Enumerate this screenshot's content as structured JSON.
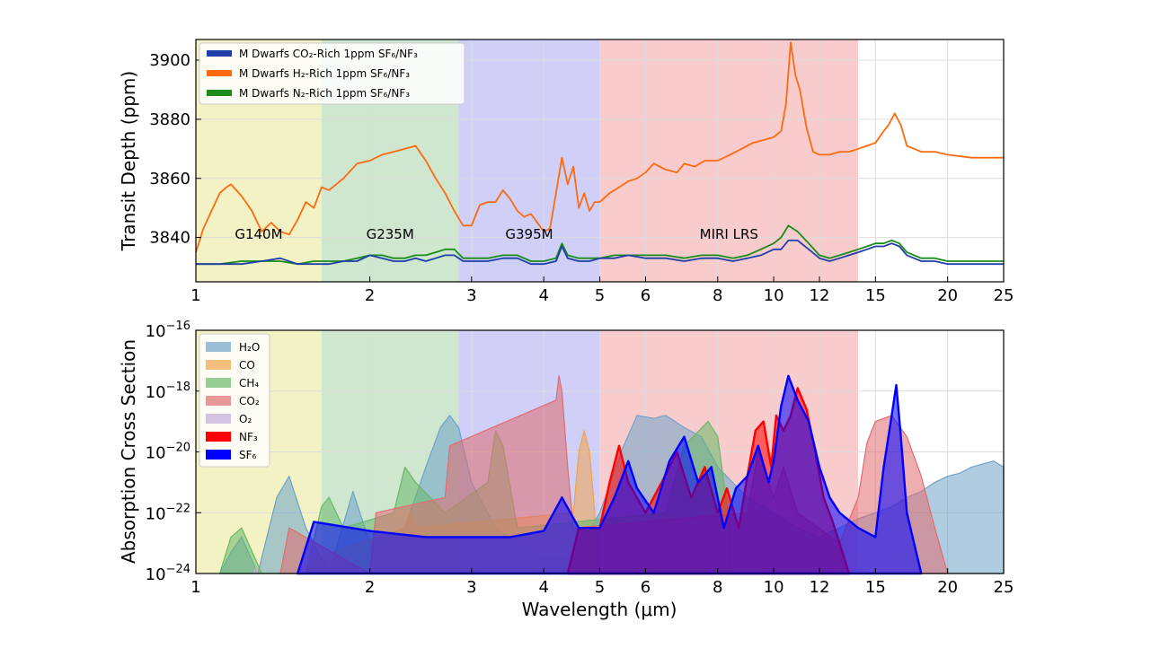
{
  "colors": {
    "band_g140m": "#f2f2c4",
    "band_g235m": "#cfe6cf",
    "band_g395m": "#cfcff7",
    "band_miri": "#f8cccc",
    "co2_rich": "#1f3fa8",
    "h2_rich": "#ff6a10",
    "n2_rich": "#1a8c1a",
    "h2o": "#6ea3c8",
    "co": "#f2a24a",
    "ch4": "#6ab86a",
    "co2": "#e06c70",
    "o2": "#c3a9dc",
    "nf3": "#ff0000",
    "sf6": "#0000ff"
  },
  "chart_data": [
    {
      "type": "line",
      "xlabel": "",
      "ylabel": "Transit Depth (ppm)",
      "xscale": "log",
      "xlim": [
        1,
        25
      ],
      "ylim": [
        3825,
        3907
      ],
      "x_ticks": [
        1,
        2,
        3,
        4,
        5,
        6,
        8,
        10,
        12,
        15,
        20,
        25
      ],
      "y_ticks": [
        3840,
        3860,
        3880,
        3900
      ],
      "grid": true,
      "legend_position": "top-left",
      "bands": [
        {
          "label": "G140M",
          "range": [
            1.0,
            1.65
          ]
        },
        {
          "label": "G235M",
          "range": [
            1.65,
            2.85
          ]
        },
        {
          "label": "G395M",
          "range": [
            2.85,
            5.0
          ]
        },
        {
          "label": "MIRI LRS",
          "range": [
            5.0,
            14.0
          ]
        }
      ],
      "series": [
        {
          "name": "M Dwarfs CO₂-Rich 1ppm SF₆/NF₃",
          "color_key": "co2_rich",
          "x": [
            1.0,
            1.1,
            1.2,
            1.3,
            1.4,
            1.5,
            1.6,
            1.7,
            1.8,
            1.9,
            2.0,
            2.1,
            2.2,
            2.3,
            2.4,
            2.5,
            2.6,
            2.7,
            2.8,
            2.9,
            3.0,
            3.2,
            3.4,
            3.6,
            3.8,
            4.0,
            4.2,
            4.3,
            4.4,
            4.6,
            4.8,
            5.0,
            5.3,
            5.6,
            6.0,
            6.5,
            7.0,
            7.5,
            8.0,
            8.5,
            9.0,
            9.5,
            10.0,
            10.3,
            10.6,
            11.0,
            11.5,
            12.0,
            12.5,
            13.0,
            13.5,
            14.0,
            14.5,
            15.0,
            15.5,
            16.0,
            16.5,
            17.0,
            18.0,
            19.0,
            20.0,
            22.0,
            25.0
          ],
          "y": [
            3831,
            3831,
            3831,
            3832,
            3833,
            3831,
            3831,
            3831,
            3832,
            3832,
            3834,
            3833,
            3832,
            3832,
            3833,
            3832,
            3833,
            3834,
            3834,
            3832,
            3832,
            3832,
            3833,
            3833,
            3831,
            3831,
            3832,
            3837,
            3833,
            3832,
            3832,
            3833,
            3833,
            3834,
            3833,
            3833,
            3832,
            3833,
            3833,
            3832,
            3833,
            3834,
            3836,
            3836,
            3839,
            3839,
            3836,
            3833,
            3832,
            3833,
            3834,
            3835,
            3836,
            3837,
            3837,
            3838,
            3837,
            3834,
            3832,
            3832,
            3831,
            3831,
            3831
          ]
        },
        {
          "name": "M Dwarfs H₂-Rich 1ppm SF₆/NF₃",
          "color_key": "h2_rich",
          "x": [
            1.0,
            1.03,
            1.07,
            1.1,
            1.13,
            1.15,
            1.2,
            1.25,
            1.3,
            1.35,
            1.4,
            1.45,
            1.5,
            1.55,
            1.6,
            1.65,
            1.7,
            1.8,
            1.9,
            2.0,
            2.1,
            2.2,
            2.3,
            2.4,
            2.5,
            2.6,
            2.7,
            2.8,
            2.9,
            3.0,
            3.1,
            3.2,
            3.3,
            3.4,
            3.5,
            3.6,
            3.7,
            3.8,
            3.9,
            4.0,
            4.1,
            4.2,
            4.3,
            4.4,
            4.5,
            4.6,
            4.7,
            4.8,
            4.9,
            5.0,
            5.2,
            5.4,
            5.6,
            5.8,
            6.0,
            6.2,
            6.5,
            6.8,
            7.0,
            7.3,
            7.6,
            8.0,
            8.4,
            8.8,
            9.2,
            9.6,
            10.0,
            10.3,
            10.5,
            10.7,
            10.9,
            11.1,
            11.4,
            11.7,
            12.0,
            12.5,
            13.0,
            13.5,
            14.0,
            14.5,
            15.0,
            15.5,
            15.8,
            16.2,
            16.6,
            17.0,
            18.0,
            19.0,
            20.0,
            22.0,
            25.0
          ],
          "y": [
            3835,
            3843,
            3850,
            3855,
            3857,
            3858,
            3854,
            3849,
            3842,
            3845,
            3842,
            3841,
            3846,
            3852,
            3850,
            3857,
            3856,
            3860,
            3865,
            3866,
            3868,
            3869,
            3870,
            3871,
            3866,
            3860,
            3855,
            3849,
            3844,
            3844,
            3851,
            3852,
            3852,
            3856,
            3853,
            3849,
            3847,
            3848,
            3845,
            3842,
            3843,
            3855,
            3867,
            3858,
            3864,
            3850,
            3855,
            3849,
            3852,
            3852,
            3855,
            3857,
            3859,
            3860,
            3862,
            3865,
            3863,
            3862,
            3865,
            3864,
            3866,
            3866,
            3868,
            3870,
            3872,
            3873,
            3874,
            3876,
            3885,
            3906,
            3895,
            3890,
            3877,
            3869,
            3868,
            3868,
            3869,
            3869,
            3870,
            3871,
            3872,
            3876,
            3878,
            3882,
            3878,
            3871,
            3869,
            3869,
            3868,
            3867,
            3867
          ]
        },
        {
          "name": "M Dwarfs N₂-Rich 1ppm SF₆/NF₃",
          "color_key": "n2_rich",
          "x": [
            1.0,
            1.1,
            1.2,
            1.3,
            1.4,
            1.5,
            1.6,
            1.7,
            1.8,
            1.9,
            2.0,
            2.1,
            2.2,
            2.3,
            2.4,
            2.5,
            2.6,
            2.7,
            2.8,
            2.9,
            3.0,
            3.2,
            3.4,
            3.6,
            3.8,
            4.0,
            4.2,
            4.3,
            4.4,
            4.6,
            4.8,
            5.0,
            5.3,
            5.6,
            6.0,
            6.5,
            7.0,
            7.5,
            8.0,
            8.5,
            9.0,
            9.5,
            10.0,
            10.3,
            10.6,
            11.0,
            11.5,
            12.0,
            12.5,
            13.0,
            13.5,
            14.0,
            14.5,
            15.0,
            15.5,
            16.0,
            16.5,
            17.0,
            18.0,
            19.0,
            20.0,
            22.0,
            25.0
          ],
          "y": [
            3831,
            3831,
            3832,
            3832,
            3832,
            3831,
            3832,
            3832,
            3832,
            3833,
            3834,
            3834,
            3833,
            3833,
            3834,
            3834,
            3835,
            3836,
            3836,
            3833,
            3833,
            3833,
            3834,
            3834,
            3832,
            3832,
            3833,
            3838,
            3834,
            3833,
            3833,
            3833,
            3834,
            3834,
            3834,
            3834,
            3833,
            3834,
            3834,
            3833,
            3834,
            3836,
            3838,
            3840,
            3844,
            3842,
            3838,
            3834,
            3833,
            3834,
            3835,
            3836,
            3837,
            3838,
            3838,
            3839,
            3838,
            3835,
            3833,
            3833,
            3832,
            3832,
            3832
          ]
        }
      ]
    },
    {
      "type": "area",
      "xlabel": "Wavelength (μm)",
      "ylabel": "Absorption Cross Section",
      "xscale": "log",
      "yscale": "log",
      "xlim": [
        1,
        25
      ],
      "ylim": [
        1e-24,
        1e-16
      ],
      "x_ticks": [
        1,
        2,
        3,
        4,
        5,
        6,
        8,
        10,
        12,
        15,
        20,
        25
      ],
      "y_ticks": [
        -24,
        -22,
        -20,
        -18,
        -16
      ],
      "grid": true,
      "legend_position": "top-left",
      "bands": [
        {
          "range": [
            1.0,
            1.65
          ]
        },
        {
          "range": [
            1.65,
            2.85
          ]
        },
        {
          "range": [
            2.85,
            5.0
          ]
        },
        {
          "range": [
            5.0,
            14.0
          ]
        }
      ],
      "series": [
        {
          "name": "H₂O",
          "color_key": "h2o",
          "x": [
            1.1,
            1.15,
            1.2,
            1.28,
            1.38,
            1.45,
            1.55,
            1.7,
            1.87,
            2.0,
            2.3,
            2.5,
            2.65,
            2.75,
            2.85,
            3.0,
            3.3,
            3.6,
            4.0,
            4.5,
            5.0,
            5.5,
            5.8,
            6.2,
            6.5,
            7.0,
            7.5,
            8.0,
            9.0,
            10.0,
            11.0,
            12.0,
            13.0,
            14.0,
            15.0,
            16.0,
            17.0,
            18.0,
            19.0,
            20.0,
            21.0,
            22.0,
            23.0,
            24.0,
            25.0
          ],
          "y": [
            -24,
            -23.3,
            -22.8,
            -24,
            -21.5,
            -20.8,
            -22.5,
            -24,
            -21.3,
            -23,
            -22.5,
            -20.5,
            -19.2,
            -18.8,
            -19.2,
            -21,
            -22.5,
            -23,
            -23.5,
            -23.5,
            -22,
            -19.8,
            -18.8,
            -18.9,
            -18.8,
            -19.2,
            -19.5,
            -20.5,
            -21.5,
            -22,
            -22.5,
            -22.8,
            -22.5,
            -22.2,
            -22,
            -21.8,
            -21.5,
            -21.3,
            -21,
            -20.8,
            -20.7,
            -20.5,
            -20.4,
            -20.3,
            -20.5
          ]
        },
        {
          "name": "CO",
          "color_key": "co",
          "x": [
            1.55,
            1.6,
            2.3,
            2.35,
            2.4,
            4.5,
            4.6,
            4.7,
            4.8,
            4.9
          ],
          "y": [
            -24,
            -23.5,
            -22.5,
            -22.0,
            -22.5,
            -22,
            -20.0,
            -19.3,
            -20.0,
            -22
          ]
        },
        {
          "name": "CH₄",
          "color_key": "ch4",
          "x": [
            1.1,
            1.15,
            1.2,
            1.3,
            1.55,
            1.65,
            1.7,
            1.8,
            2.2,
            2.3,
            2.4,
            2.7,
            3.2,
            3.3,
            3.4,
            3.6,
            6.5,
            7.0,
            7.7,
            8.0,
            8.4
          ],
          "y": [
            -24,
            -22.8,
            -22.5,
            -24,
            -24,
            -21.8,
            -21.5,
            -22.5,
            -22,
            -20.5,
            -21,
            -22,
            -21,
            -19.3,
            -19.8,
            -22.5,
            -22,
            -19.8,
            -19,
            -19.5,
            -22.5
          ]
        },
        {
          "name": "CO₂",
          "color_key": "co2",
          "x": [
            1.4,
            1.45,
            2.0,
            2.05,
            2.7,
            2.75,
            4.2,
            4.25,
            4.3,
            4.4,
            4.5,
            9.0,
            9.4,
            10.0,
            10.4,
            11.0,
            13.0,
            14.0,
            14.5,
            15.0,
            16.0,
            17.0,
            18.0,
            19.0,
            20.0
          ],
          "y": [
            -24,
            -22.5,
            -24,
            -22.0,
            -21.5,
            -19.8,
            -18.3,
            -17.5,
            -18,
            -20.5,
            -22.5,
            -22,
            -20,
            -21.5,
            -20.5,
            -22,
            -23,
            -21.5,
            -19.7,
            -19.0,
            -18.8,
            -19.5,
            -20.8,
            -22.5,
            -24
          ]
        },
        {
          "name": "O₂",
          "color_key": "o2",
          "x": [
            1.26,
            1.27,
            1.28
          ],
          "y": [
            -24,
            -23.8,
            -24
          ]
        },
        {
          "name": "NF₃",
          "color_key": "nf3",
          "x": [
            4.4,
            4.6,
            5.0,
            5.2,
            5.4,
            5.6,
            6.0,
            6.4,
            6.8,
            7.2,
            7.6,
            8.0,
            8.3,
            8.7,
            9.0,
            9.3,
            9.6,
            9.9,
            10.1,
            10.4,
            10.7,
            11.0,
            11.4,
            11.8,
            12.2,
            12.6,
            13.0,
            13.5
          ],
          "y": [
            -24,
            -22.5,
            -22.5,
            -21,
            -19.8,
            -21,
            -22,
            -21,
            -20,
            -21.5,
            -20.5,
            -22,
            -21.2,
            -22.5,
            -20.8,
            -19.3,
            -19.0,
            -20.5,
            -18.8,
            -19.3,
            -18.8,
            -17.9,
            -18.6,
            -20,
            -21.5,
            -22.2,
            -23,
            -24
          ]
        },
        {
          "name": "SF₆",
          "color_key": "sf6",
          "x": [
            1.5,
            1.6,
            2.0,
            2.5,
            3.0,
            3.5,
            4.0,
            4.3,
            4.6,
            5.0,
            5.3,
            5.6,
            5.8,
            6.2,
            6.6,
            7.0,
            7.4,
            7.8,
            8.2,
            8.6,
            9.0,
            9.4,
            9.8,
            10.0,
            10.3,
            10.6,
            11.0,
            11.5,
            12.0,
            12.5,
            13.0,
            14.0,
            15.0,
            15.5,
            16.0,
            16.3,
            16.6,
            17.0,
            18.0
          ],
          "y": [
            -24,
            -22.3,
            -22.6,
            -22.8,
            -22.8,
            -22.8,
            -22.6,
            -21.5,
            -22.5,
            -22.5,
            -21.5,
            -20.3,
            -21.2,
            -22,
            -20.3,
            -19.5,
            -21,
            -20.5,
            -22.5,
            -21.2,
            -20.8,
            -19.8,
            -21,
            -20.3,
            -18.5,
            -17.5,
            -18.3,
            -19,
            -20.5,
            -21.5,
            -22,
            -22.5,
            -22.8,
            -20.5,
            -18.8,
            -17.8,
            -19.5,
            -22,
            -24
          ]
        }
      ]
    }
  ]
}
